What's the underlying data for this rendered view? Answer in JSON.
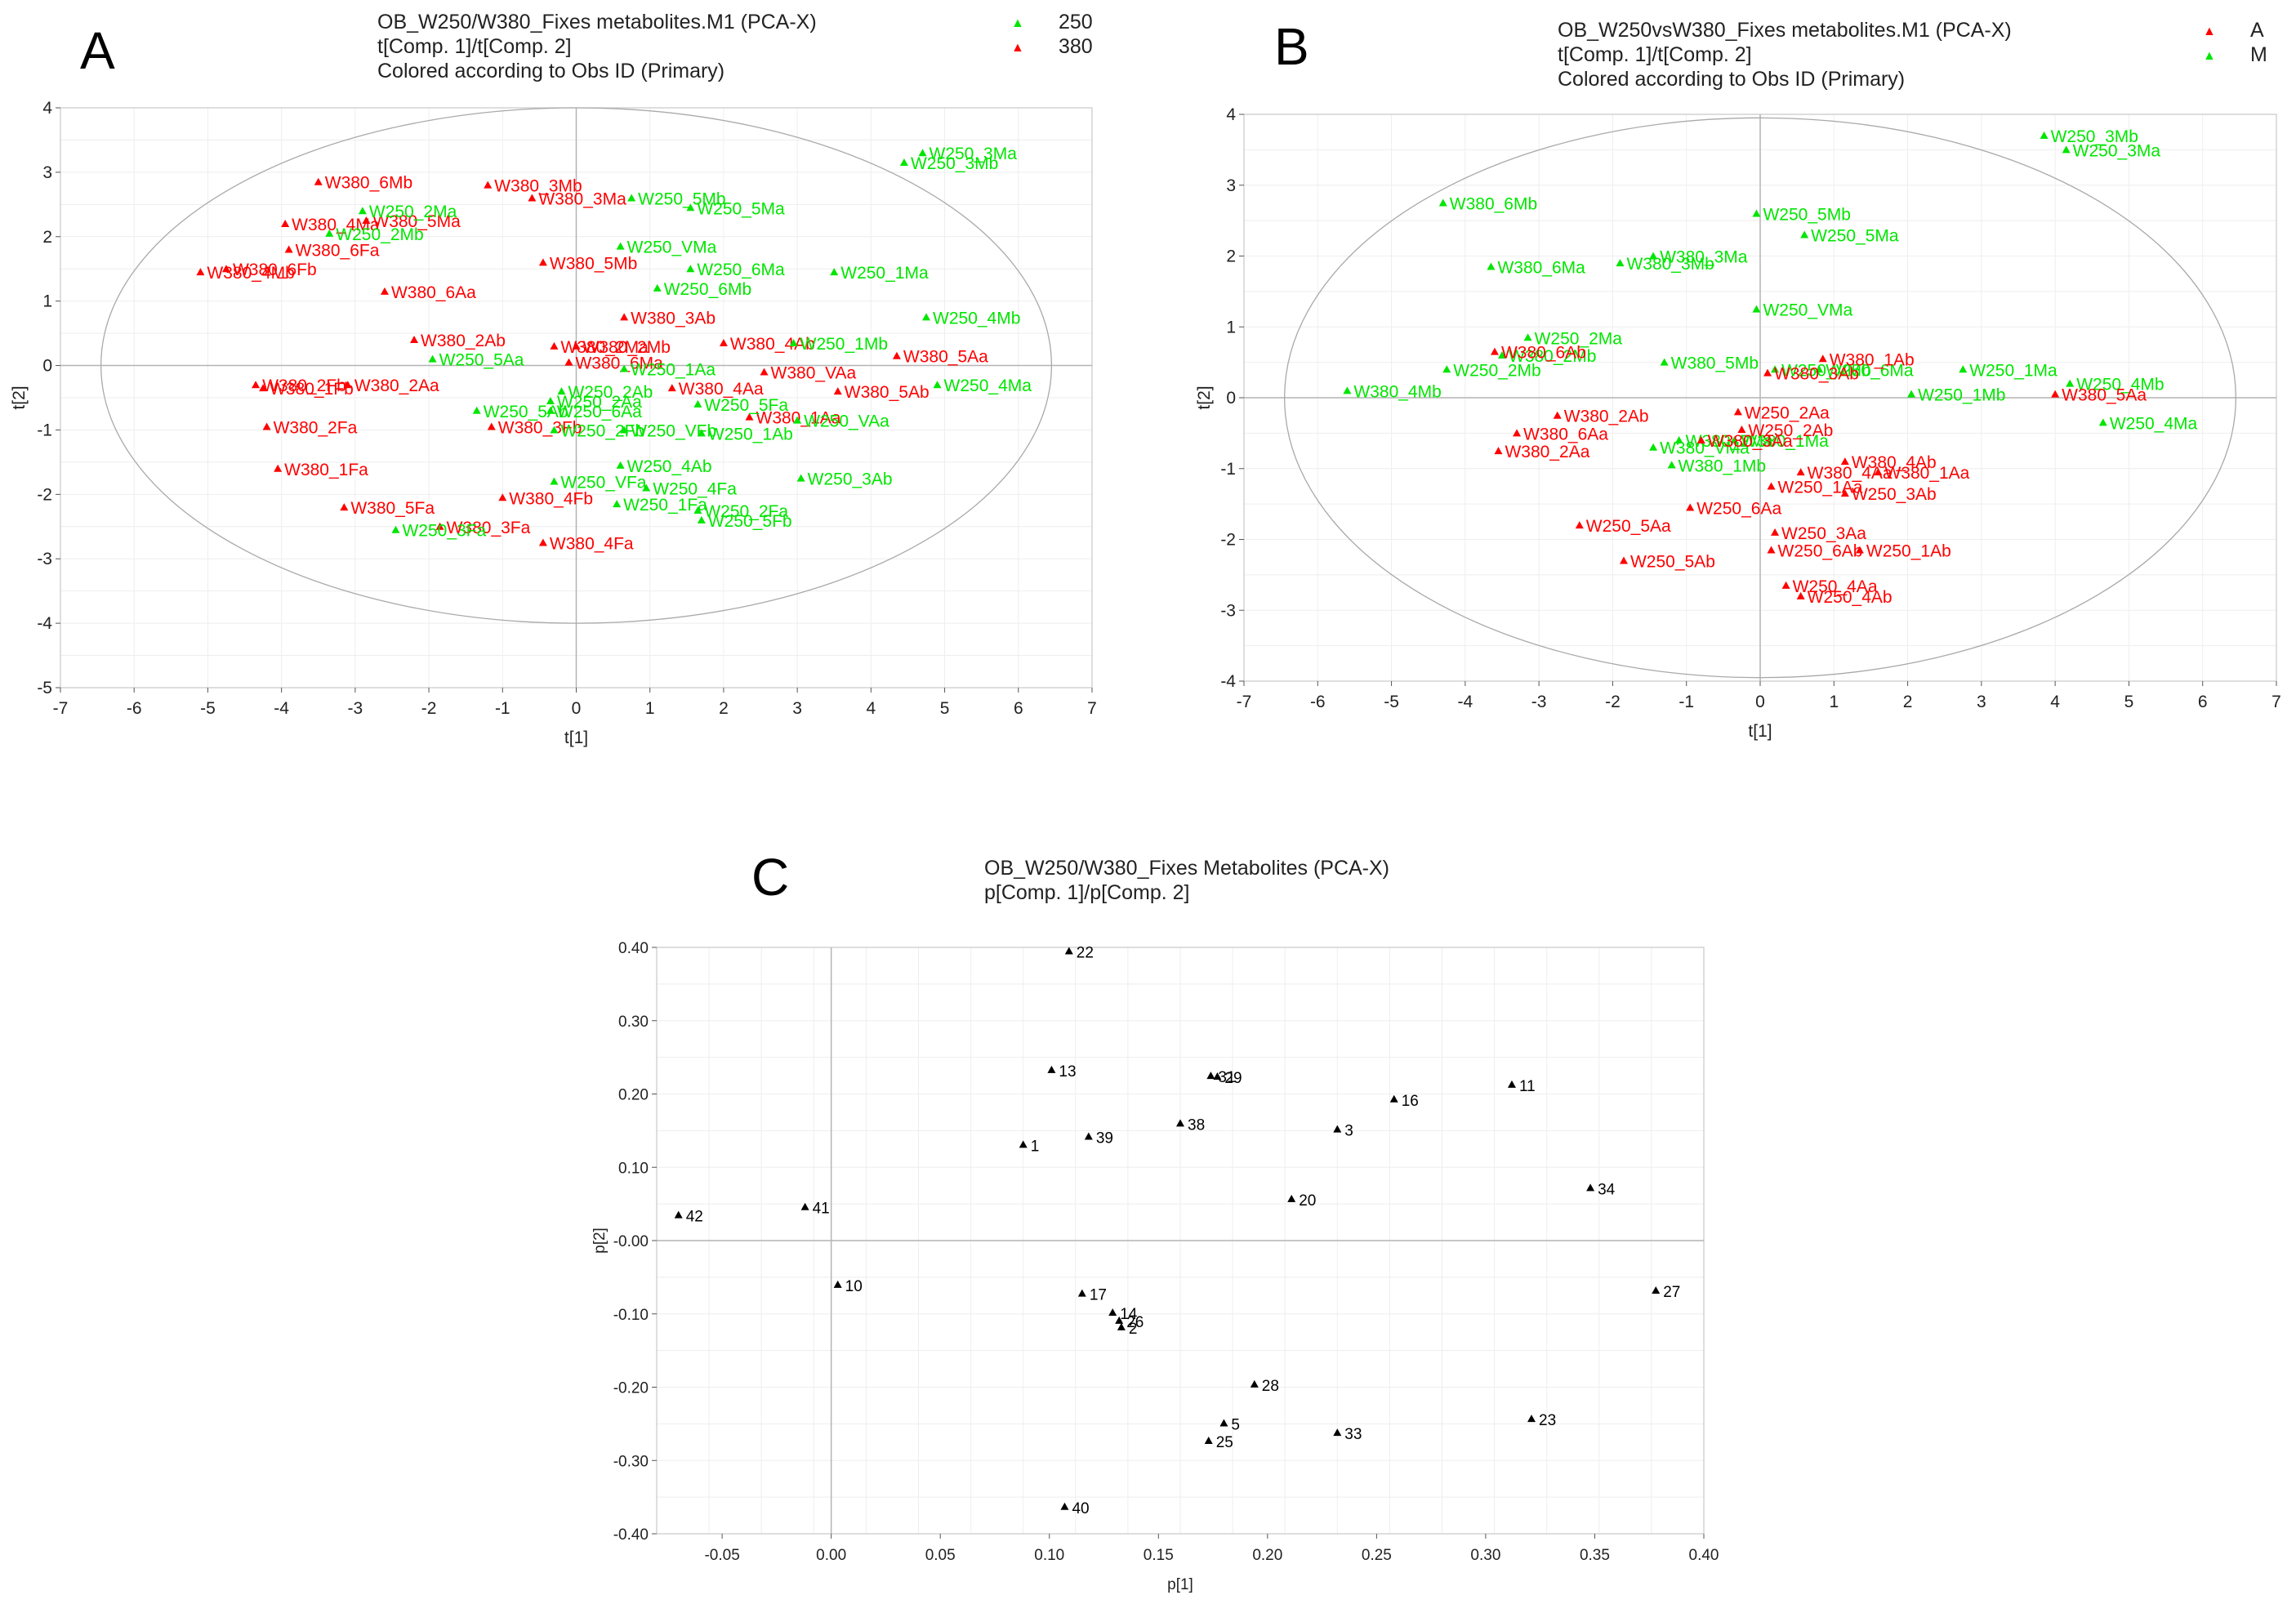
{
  "colors": {
    "red": "#ff0000",
    "green": "#00e600",
    "black": "#000000",
    "grid": "#eeeeee",
    "axis": "#b4b4b4"
  },
  "chart_data": [
    {
      "panel_label": "A",
      "type": "scatter",
      "title": "OB_W250/W380_Fixes metabolites.M1 (PCA-X)",
      "subtitle1": "t[Comp. 1]/t[Comp. 2]",
      "subtitle2": "Colored according to Obs ID (Primary)",
      "xlabel": "t[1]",
      "ylabel": "t[2]",
      "xlim": [
        -7,
        7
      ],
      "ylim": [
        -5,
        4
      ],
      "xticks": [
        -7,
        -6,
        -5,
        -4,
        -3,
        -2,
        -1,
        0,
        1,
        2,
        3,
        4,
        5,
        6,
        7
      ],
      "yticks": [
        -5,
        -4,
        -3,
        -2,
        -1,
        0,
        1,
        2,
        3,
        4
      ],
      "ellipse": {
        "cx": 0,
        "cy": 0,
        "rx": 6.45,
        "ry": 4.0
      },
      "legend": [
        {
          "name": "250",
          "color": "#00e600"
        },
        {
          "name": "380",
          "color": "#ff0000"
        }
      ],
      "series": [
        {
          "name": "380",
          "color": "#ff0000",
          "points": [
            {
              "label": "W380_6Mb",
              "x": -3.5,
              "y": 2.85
            },
            {
              "label": "W380_3Mb",
              "x": -1.2,
              "y": 2.8
            },
            {
              "label": "W380_3Ma",
              "x": -0.6,
              "y": 2.6
            },
            {
              "label": "W380_4Ma",
              "x": -3.95,
              "y": 2.2
            },
            {
              "label": "W380_5Ma",
              "x": -2.85,
              "y": 2.25
            },
            {
              "label": "W380_6Fa",
              "x": -3.9,
              "y": 1.8
            },
            {
              "label": "W380_6Fb",
              "x": -4.75,
              "y": 1.5
            },
            {
              "label": "W380_4Mb",
              "x": -5.1,
              "y": 1.45
            },
            {
              "label": "W380_5Mb",
              "x": -0.45,
              "y": 1.6
            },
            {
              "label": "W380_6Aa",
              "x": -2.6,
              "y": 1.15
            },
            {
              "label": "W380_3Ab",
              "x": 0.65,
              "y": 0.75
            },
            {
              "label": "W380_2Ab",
              "x": -2.2,
              "y": 0.4
            },
            {
              "label": "W380_2Ma",
              "x": -0.3,
              "y": 0.3
            },
            {
              "label": "W380_2Mb",
              "x": 0.0,
              "y": 0.3
            },
            {
              "label": "W380_4Ab",
              "x": 2.0,
              "y": 0.35
            },
            {
              "label": "W380_6Ma",
              "x": -0.1,
              "y": 0.05
            },
            {
              "label": "W380_2Fb",
              "x": -4.35,
              "y": -0.3
            },
            {
              "label": "W380_1Fb",
              "x": -4.25,
              "y": -0.35
            },
            {
              "label": "W380_2Aa",
              "x": -3.1,
              "y": -0.3
            },
            {
              "label": "W380_4Aa",
              "x": 1.3,
              "y": -0.35
            },
            {
              "label": "W380_VAa",
              "x": 2.55,
              "y": -0.1
            },
            {
              "label": "W380_5Aa",
              "x": 4.35,
              "y": 0.15
            },
            {
              "label": "W380_5Ab",
              "x": 3.55,
              "y": -0.4
            },
            {
              "label": "W380_1Aa",
              "x": 2.35,
              "y": -0.8
            },
            {
              "label": "W380_2Fa",
              "x": -4.2,
              "y": -0.95
            },
            {
              "label": "W380_3Fb",
              "x": -1.15,
              "y": -0.95
            },
            {
              "label": "W380_1Fa",
              "x": -4.05,
              "y": -1.6
            },
            {
              "label": "W380_4Fb",
              "x": -1.0,
              "y": -2.05
            },
            {
              "label": "W380_5Fa",
              "x": -3.15,
              "y": -2.2
            },
            {
              "label": "W380_3Fa",
              "x": -1.85,
              "y": -2.5
            },
            {
              "label": "W380_4Fa",
              "x": -0.45,
              "y": -2.75
            }
          ]
        },
        {
          "name": "250",
          "color": "#00e600",
          "points": [
            {
              "label": "W250_3Ma",
              "x": 4.7,
              "y": 3.3
            },
            {
              "label": "W250_3Mb",
              "x": 4.45,
              "y": 3.15
            },
            {
              "label": "W250_5Mb",
              "x": 0.75,
              "y": 2.6
            },
            {
              "label": "W250_5Ma",
              "x": 1.55,
              "y": 2.45
            },
            {
              "label": "W250_2Ma",
              "x": -2.9,
              "y": 2.4
            },
            {
              "label": "W250_2Mb",
              "x": -3.35,
              "y": 2.05
            },
            {
              "label": "W250_VMa",
              "x": 0.6,
              "y": 1.85
            },
            {
              "label": "W250_6Ma",
              "x": 1.55,
              "y": 1.5
            },
            {
              "label": "W250_1Ma",
              "x": 3.5,
              "y": 1.45
            },
            {
              "label": "W250_6Mb",
              "x": 1.1,
              "y": 1.2
            },
            {
              "label": "W250_4Mb",
              "x": 4.75,
              "y": 0.75
            },
            {
              "label": "W250_1Mb",
              "x": 2.95,
              "y": 0.35
            },
            {
              "label": "W250_5Aa",
              "x": -1.95,
              "y": 0.1
            },
            {
              "label": "W250_1Aa",
              "x": 0.65,
              "y": -0.05
            },
            {
              "label": "W250_4Ma",
              "x": 4.9,
              "y": -0.3
            },
            {
              "label": "W250_5Fa",
              "x": 1.65,
              "y": -0.6
            },
            {
              "label": "W250_6Aa",
              "x": -0.35,
              "y": -0.7
            },
            {
              "label": "W250_5Ab",
              "x": -1.35,
              "y": -0.7
            },
            {
              "label": "W250_2Ab",
              "x": -0.2,
              "y": -0.4
            },
            {
              "label": "W250_2Aa",
              "x": -0.35,
              "y": -0.55
            },
            {
              "label": "W250_VAa",
              "x": 3.0,
              "y": -0.85
            },
            {
              "label": "W250_2Fb",
              "x": -0.3,
              "y": -1.0
            },
            {
              "label": "W250_VFb",
              "x": 0.65,
              "y": -1.0
            },
            {
              "label": "W250_1Ab",
              "x": 1.7,
              "y": -1.05
            },
            {
              "label": "W250_4Ab",
              "x": 0.6,
              "y": -1.55
            },
            {
              "label": "W250_VFa",
              "x": -0.3,
              "y": -1.8
            },
            {
              "label": "W250_3Ab",
              "x": 3.05,
              "y": -1.75
            },
            {
              "label": "W250_4Fa",
              "x": 0.95,
              "y": -1.9
            },
            {
              "label": "W250_1Fa",
              "x": 0.55,
              "y": -2.15
            },
            {
              "label": "W250_2Fa",
              "x": 1.65,
              "y": -2.25
            },
            {
              "label": "W250_5Fb",
              "x": 1.7,
              "y": -2.4
            },
            {
              "label": "W250_3Fa",
              "x": -2.45,
              "y": -2.55
            }
          ]
        }
      ]
    },
    {
      "panel_label": "B",
      "type": "scatter",
      "title": "OB_W250vsW380_Fixes metabolites.M1 (PCA-X)",
      "subtitle1": "t[Comp. 1]/t[Comp. 2]",
      "subtitle2": "Colored according to Obs ID (Primary)",
      "xlabel": "t[1]",
      "ylabel": "t[2]",
      "xlim": [
        -7,
        7
      ],
      "ylim": [
        -4,
        4
      ],
      "xticks": [
        -7,
        -6,
        -5,
        -4,
        -3,
        -2,
        -1,
        0,
        1,
        2,
        3,
        4,
        5,
        6,
        7
      ],
      "yticks": [
        -4,
        -3,
        -2,
        -1,
        0,
        1,
        2,
        3,
        4
      ],
      "ellipse": {
        "cx": 0,
        "cy": 0,
        "rx": 6.45,
        "ry": 3.95
      },
      "legend": [
        {
          "name": "A",
          "color": "#ff0000"
        },
        {
          "name": "M",
          "color": "#00e600"
        }
      ],
      "series": [
        {
          "name": "M",
          "color": "#00e600",
          "points": [
            {
              "label": "W250_3Mb",
              "x": 3.85,
              "y": 3.7
            },
            {
              "label": "W250_3Ma",
              "x": 4.15,
              "y": 3.5
            },
            {
              "label": "W380_6Mb",
              "x": -4.3,
              "y": 2.75
            },
            {
              "label": "W250_5Mb",
              "x": -0.05,
              "y": 2.6
            },
            {
              "label": "W250_5Ma",
              "x": 0.6,
              "y": 2.3
            },
            {
              "label": "W380_3Ma",
              "x": -1.45,
              "y": 2.0
            },
            {
              "label": "W380_3Mb",
              "x": -1.9,
              "y": 1.9
            },
            {
              "label": "W380_6Ma",
              "x": -3.65,
              "y": 1.85
            },
            {
              "label": "W250_VMa",
              "x": -0.05,
              "y": 1.25
            },
            {
              "label": "W250_2Ma",
              "x": -3.15,
              "y": 0.85
            },
            {
              "label": "W380_2Mb",
              "x": -3.5,
              "y": 0.6
            },
            {
              "label": "W250_6Ma",
              "x": 0.8,
              "y": 0.4
            },
            {
              "label": "W380_5Mb",
              "x": -1.3,
              "y": 0.5
            },
            {
              "label": "W250_VMb",
              "x": 0.2,
              "y": 0.4
            },
            {
              "label": "W250_2Mb",
              "x": -4.25,
              "y": 0.4
            },
            {
              "label": "W250_1Ma",
              "x": 2.75,
              "y": 0.4
            },
            {
              "label": "W250_1Mb",
              "x": 2.05,
              "y": 0.05
            },
            {
              "label": "W250_4Mb",
              "x": 4.2,
              "y": 0.2
            },
            {
              "label": "W250_4Ma",
              "x": 4.65,
              "y": -0.35
            },
            {
              "label": "W380_4Mb",
              "x": -5.6,
              "y": 0.1
            },
            {
              "label": "W380_1Ma",
              "x": -0.35,
              "y": -0.6
            },
            {
              "label": "W380_2Ma",
              "x": -1.1,
              "y": -0.6
            },
            {
              "label": "W380_1Mb",
              "x": -1.2,
              "y": -0.95
            },
            {
              "label": "W380_VMa",
              "x": -1.45,
              "y": -0.7
            }
          ]
        },
        {
          "name": "A",
          "color": "#ff0000",
          "points": [
            {
              "label": "W380_6Ab",
              "x": -3.6,
              "y": 0.65
            },
            {
              "label": "W380_1Ab",
              "x": 0.85,
              "y": 0.55
            },
            {
              "label": "W380_3Ab",
              "x": 0.1,
              "y": 0.35
            },
            {
              "label": "W380_5Aa",
              "x": 4.0,
              "y": 0.05
            },
            {
              "label": "W380_2Ab",
              "x": -2.75,
              "y": -0.25
            },
            {
              "label": "W250_2Aa",
              "x": -0.3,
              "y": -0.2
            },
            {
              "label": "W380_6Aa",
              "x": -3.3,
              "y": -0.5
            },
            {
              "label": "W250_2Ab",
              "x": -0.25,
              "y": -0.45
            },
            {
              "label": "W380_2Aa",
              "x": -3.55,
              "y": -0.75
            },
            {
              "label": "W380_3Aa",
              "x": -0.8,
              "y": -0.6
            },
            {
              "label": "W380_4Ab",
              "x": 1.15,
              "y": -0.9
            },
            {
              "label": "W380_4Aa",
              "x": 0.55,
              "y": -1.05
            },
            {
              "label": "W380_1Aa",
              "x": 1.6,
              "y": -1.05
            },
            {
              "label": "W250_1Aa",
              "x": 0.15,
              "y": -1.25
            },
            {
              "label": "W250_3Ab",
              "x": 1.15,
              "y": -1.35
            },
            {
              "label": "W250_6Aa",
              "x": -0.95,
              "y": -1.55
            },
            {
              "label": "W250_5Aa",
              "x": -2.45,
              "y": -1.8
            },
            {
              "label": "W250_3Aa",
              "x": 0.2,
              "y": -1.9
            },
            {
              "label": "W250_6Ab",
              "x": 0.15,
              "y": -2.15
            },
            {
              "label": "W250_1Ab",
              "x": 1.35,
              "y": -2.15
            },
            {
              "label": "W250_5Ab",
              "x": -1.85,
              "y": -2.3
            },
            {
              "label": "W250_4Aa",
              "x": 0.35,
              "y": -2.65
            },
            {
              "label": "W250_4Ab",
              "x": 0.55,
              "y": -2.8
            }
          ]
        }
      ]
    },
    {
      "panel_label": "C",
      "type": "scatter",
      "title": "OB_W250/W380_Fixes Metabolites (PCA-X)",
      "subtitle1": "p[Comp. 1]/p[Comp. 2]",
      "xlabel": "p[1]",
      "ylabel": "p[2]",
      "xlim": [
        -0.08,
        0.4
      ],
      "ylim": [
        -0.4,
        0.4
      ],
      "xticks": [
        "-0.05",
        "0.00",
        "0.05",
        "0.10",
        "0.15",
        "0.20",
        "0.25",
        "0.30",
        "0.35",
        "0.40"
      ],
      "yticks": [
        "0.40",
        "0.30",
        "0.20",
        "0.10",
        "-0.00",
        "-0.10",
        "-0.20",
        "-0.30",
        "-0.40"
      ],
      "series": [
        {
          "name": "",
          "color": "#000000",
          "points": [
            {
              "label": "22",
              "x": 0.109,
              "y": 0.395
            },
            {
              "label": "13",
              "x": 0.101,
              "y": 0.233
            },
            {
              "label": "31",
              "x": 0.174,
              "y": 0.225
            },
            {
              "label": "29",
              "x": 0.177,
              "y": 0.224
            },
            {
              "label": "11",
              "x": 0.312,
              "y": 0.213
            },
            {
              "label": "16",
              "x": 0.258,
              "y": 0.193
            },
            {
              "label": "38",
              "x": 0.16,
              "y": 0.16
            },
            {
              "label": "3",
              "x": 0.232,
              "y": 0.152
            },
            {
              "label": "39",
              "x": 0.118,
              "y": 0.142
            },
            {
              "label": "1",
              "x": 0.088,
              "y": 0.131
            },
            {
              "label": "34",
              "x": 0.348,
              "y": 0.072
            },
            {
              "label": "20",
              "x": 0.211,
              "y": 0.057
            },
            {
              "label": "41",
              "x": -0.012,
              "y": 0.046
            },
            {
              "label": "42",
              "x": -0.07,
              "y": 0.035
            },
            {
              "label": "10",
              "x": 0.003,
              "y": -0.06
            },
            {
              "label": "17",
              "x": 0.115,
              "y": -0.072
            },
            {
              "label": "27",
              "x": 0.378,
              "y": -0.068
            },
            {
              "label": "14",
              "x": 0.129,
              "y": -0.098
            },
            {
              "label": "26",
              "x": 0.132,
              "y": -0.109
            },
            {
              "label": "2",
              "x": 0.133,
              "y": -0.118
            },
            {
              "label": "28",
              "x": 0.194,
              "y": -0.196
            },
            {
              "label": "5",
              "x": 0.18,
              "y": -0.249
            },
            {
              "label": "23",
              "x": 0.321,
              "y": -0.243
            },
            {
              "label": "33",
              "x": 0.232,
              "y": -0.262
            },
            {
              "label": "25",
              "x": 0.173,
              "y": -0.273
            },
            {
              "label": "40",
              "x": 0.107,
              "y": -0.363
            }
          ]
        }
      ]
    }
  ]
}
